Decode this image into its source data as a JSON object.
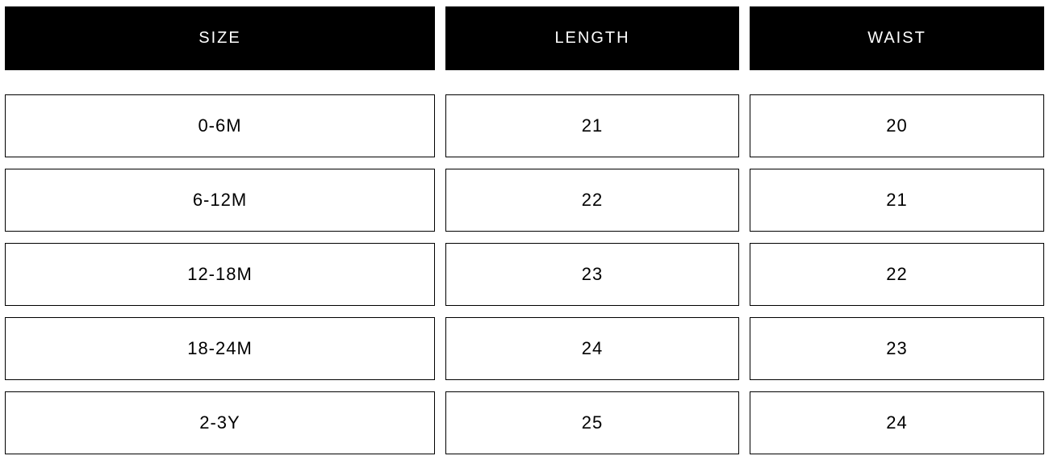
{
  "headers": [
    "SIZE",
    "LENGTH",
    "WAIST"
  ],
  "rows": [
    [
      "0-6M",
      "21",
      "20"
    ],
    [
      "6-12M",
      "22",
      "21"
    ],
    [
      "12-18M",
      "23",
      "22"
    ],
    [
      "18-24M",
      "24",
      "23"
    ],
    [
      "2-3Y",
      "25",
      "24"
    ]
  ]
}
